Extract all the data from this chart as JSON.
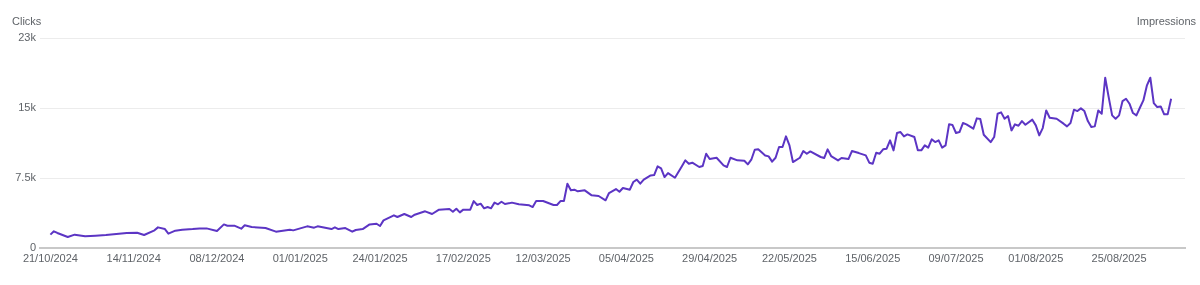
{
  "chart_data": {
    "type": "line",
    "ylabel": "Clicks",
    "y2label": "Impressions",
    "grid": "y",
    "legend": false,
    "marker": "none",
    "line_style": "solid",
    "xlim": [
      "2024-10-18",
      "2025-09-13"
    ],
    "xticks": [
      {
        "value": "2024-10-21",
        "label": "21/10/2024"
      },
      {
        "value": "2024-11-14",
        "label": "14/11/2024"
      },
      {
        "value": "2024-12-08",
        "label": "08/12/2024"
      },
      {
        "value": "2025-01-01",
        "label": "01/01/2025"
      },
      {
        "value": "2025-01-24",
        "label": "24/01/2025"
      },
      {
        "value": "2025-02-17",
        "label": "17/02/2025"
      },
      {
        "value": "2025-03-12",
        "label": "12/03/2025"
      },
      {
        "value": "2025-04-05",
        "label": "05/04/2025"
      },
      {
        "value": "2025-04-29",
        "label": "29/04/2025"
      },
      {
        "value": "2025-05-22",
        "label": "22/05/2025"
      },
      {
        "value": "2025-06-15",
        "label": "15/06/2025"
      },
      {
        "value": "2025-07-09",
        "label": "09/07/2025"
      },
      {
        "value": "2025-08-01",
        "label": "01/08/2025"
      },
      {
        "value": "2025-08-25",
        "label": "25/08/2025"
      }
    ],
    "ylim": [
      0,
      22500
    ],
    "yticks": [
      0,
      {
        "value": 7500,
        "label": "7.5k"
      },
      {
        "value": 15000,
        "label": "15k"
      },
      {
        "value": 22500,
        "label": "23k"
      }
    ],
    "x": [
      "2024-10-21",
      "2024-10-22",
      "2024-10-23",
      "2024-10-26",
      "2024-10-28",
      "2024-10-31",
      "2024-11-03",
      "2024-11-06",
      "2024-11-12",
      "2024-11-15",
      "2024-11-17",
      "2024-11-20",
      "2024-11-21",
      "2024-11-23",
      "2024-11-24",
      "2024-11-26",
      "2024-11-28",
      "2024-12-01",
      "2024-12-03",
      "2024-12-05",
      "2024-12-08",
      "2024-12-10",
      "2024-12-11",
      "2024-12-13",
      "2024-12-15",
      "2024-12-16",
      "2024-12-18",
      "2024-12-22",
      "2024-12-25",
      "2024-12-29",
      "2024-12-30",
      "2025-01-03",
      "2025-01-05",
      "2025-01-06",
      "2025-01-10",
      "2025-01-11",
      "2025-01-12",
      "2025-01-14",
      "2025-01-16",
      "2025-01-17",
      "2025-01-19",
      "2025-01-21",
      "2025-01-23",
      "2025-01-24",
      "2025-01-25",
      "2025-01-28",
      "2025-01-29",
      "2025-01-31",
      "2025-02-02",
      "2025-02-03",
      "2025-02-06",
      "2025-02-08",
      "2025-02-10",
      "2025-02-13",
      "2025-02-14",
      "2025-02-15",
      "2025-02-16",
      "2025-02-17",
      "2025-02-19",
      "2025-02-20",
      "2025-02-21",
      "2025-02-22",
      "2025-02-23",
      "2025-02-24",
      "2025-02-25",
      "2025-02-26",
      "2025-02-27",
      "2025-02-28",
      "2025-03-01",
      "2025-03-03",
      "2025-03-05",
      "2025-03-08",
      "2025-03-09",
      "2025-03-10",
      "2025-03-12",
      "2025-03-15",
      "2025-03-16",
      "2025-03-17",
      "2025-03-18",
      "2025-03-19",
      "2025-03-20",
      "2025-03-21",
      "2025-03-22",
      "2025-03-24",
      "2025-03-26",
      "2025-03-28",
      "2025-03-30",
      "2025-03-31",
      "2025-04-02",
      "2025-04-03",
      "2025-04-04",
      "2025-04-06",
      "2025-04-07",
      "2025-04-08",
      "2025-04-09",
      "2025-04-10",
      "2025-04-12",
      "2025-04-13",
      "2025-04-14",
      "2025-04-15",
      "2025-04-16",
      "2025-04-17",
      "2025-04-19",
      "2025-04-21",
      "2025-04-22",
      "2025-04-23",
      "2025-04-24",
      "2025-04-26",
      "2025-04-27",
      "2025-04-28",
      "2025-04-29",
      "2025-05-01",
      "2025-05-03",
      "2025-05-04",
      "2025-05-05",
      "2025-05-07",
      "2025-05-09",
      "2025-05-10",
      "2025-05-11",
      "2025-05-12",
      "2025-05-13",
      "2025-05-15",
      "2025-05-16",
      "2025-05-17",
      "2025-05-18",
      "2025-05-19",
      "2025-05-20",
      "2025-05-21",
      "2025-05-22",
      "2025-05-23",
      "2025-05-25",
      "2025-05-26",
      "2025-05-27",
      "2025-05-28",
      "2025-05-31",
      "2025-06-01",
      "2025-06-02",
      "2025-06-03",
      "2025-06-05",
      "2025-06-06",
      "2025-06-08",
      "2025-06-09",
      "2025-06-11",
      "2025-06-13",
      "2025-06-14",
      "2025-06-15",
      "2025-06-16",
      "2025-06-17",
      "2025-06-18",
      "2025-06-19",
      "2025-06-20",
      "2025-06-21",
      "2025-06-22",
      "2025-06-23",
      "2025-06-24",
      "2025-06-25",
      "2025-06-27",
      "2025-06-28",
      "2025-06-29",
      "2025-06-30",
      "2025-07-01",
      "2025-07-02",
      "2025-07-03",
      "2025-07-04",
      "2025-07-05",
      "2025-07-06",
      "2025-07-07",
      "2025-07-08",
      "2025-07-09",
      "2025-07-10",
      "2025-07-11",
      "2025-07-12",
      "2025-07-14",
      "2025-07-15",
      "2025-07-16",
      "2025-07-17",
      "2025-07-19",
      "2025-07-20",
      "2025-07-21",
      "2025-07-22",
      "2025-07-23",
      "2025-07-24",
      "2025-07-25",
      "2025-07-26",
      "2025-07-27",
      "2025-07-28",
      "2025-07-29",
      "2025-07-31",
      "2025-08-01",
      "2025-08-02",
      "2025-08-03",
      "2025-08-04",
      "2025-08-05",
      "2025-08-07",
      "2025-08-09",
      "2025-08-10",
      "2025-08-11",
      "2025-08-12",
      "2025-08-13",
      "2025-08-14",
      "2025-08-15",
      "2025-08-16",
      "2025-08-17",
      "2025-08-18",
      "2025-08-19",
      "2025-08-20",
      "2025-08-21",
      "2025-08-22",
      "2025-08-23",
      "2025-08-24",
      "2025-08-25",
      "2025-08-26",
      "2025-08-27",
      "2025-08-28",
      "2025-08-29",
      "2025-08-30",
      "2025-08-31",
      "2025-09-01",
      "2025-09-02",
      "2025-09-03",
      "2025-09-04",
      "2025-09-05",
      "2025-09-06",
      "2025-09-07",
      "2025-09-08",
      "2025-09-09"
    ],
    "series": [
      {
        "color": "#5c35c4",
        "values": [
          1430,
          1790,
          1610,
          1180,
          1430,
          1250,
          1320,
          1390,
          1610,
          1640,
          1390,
          1890,
          2210,
          2030,
          1540,
          1860,
          1960,
          2030,
          2100,
          2100,
          1820,
          2530,
          2390,
          2390,
          2070,
          2430,
          2250,
          2140,
          1750,
          1960,
          1890,
          2320,
          2180,
          2320,
          2030,
          2210,
          2030,
          2140,
          1750,
          1930,
          2030,
          2530,
          2600,
          2360,
          2960,
          3500,
          3320,
          3640,
          3320,
          3570,
          3930,
          3640,
          4110,
          4180,
          3890,
          4210,
          3820,
          4110,
          4110,
          5030,
          4610,
          4750,
          4250,
          4390,
          4250,
          4860,
          4680,
          4960,
          4710,
          4860,
          4680,
          4570,
          4390,
          5030,
          5030,
          4610,
          4610,
          5030,
          5030,
          6890,
          6180,
          6250,
          6070,
          6180,
          5640,
          5570,
          5110,
          5890,
          6320,
          6030,
          6430,
          6250,
          7070,
          7320,
          6890,
          7320,
          7780,
          7820,
          8750,
          8530,
          7600,
          8030,
          7530,
          8750,
          9390,
          9030,
          9140,
          8680,
          8780,
          10100,
          9530,
          9670,
          8850,
          8680,
          9670,
          9390,
          9350,
          8960,
          9460,
          10530,
          10570,
          9920,
          9820,
          9250,
          9670,
          10820,
          10820,
          11960,
          11000,
          9210,
          9670,
          10390,
          10100,
          10350,
          9750,
          9640,
          10570,
          9850,
          9390,
          9640,
          9530,
          10390,
          10170,
          9920,
          9140,
          9030,
          10210,
          10100,
          10570,
          10640,
          11530,
          10460,
          12320,
          12420,
          11960,
          12170,
          11890,
          10460,
          10460,
          11000,
          10750,
          11640,
          11350,
          11530,
          10750,
          11000,
          13250,
          13170,
          12320,
          12420,
          13390,
          13250,
          12780,
          13890,
          13820,
          12140,
          11350,
          11890,
          14390,
          14530,
          13850,
          14140,
          12600,
          13250,
          13100,
          13600,
          13210,
          13750,
          13140,
          12070,
          12850,
          14740,
          13960,
          13850,
          13320,
          13030,
          13390,
          14820,
          14670,
          14960,
          14670,
          13600,
          12960,
          13030,
          14740,
          14390,
          18240,
          16170,
          14210,
          13850,
          14210,
          15740,
          15990,
          15460,
          14460,
          14210,
          15030,
          15810,
          17390,
          18240,
          15530,
          15100,
          15170,
          14320,
          14320,
          15990
        ]
      }
    ]
  }
}
